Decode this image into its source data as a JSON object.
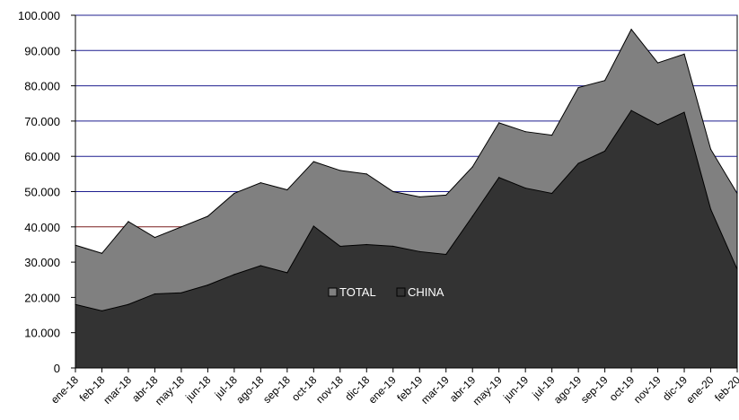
{
  "chart_data": {
    "type": "area",
    "categories": [
      "ene-18",
      "feb-18",
      "mar-18",
      "abr-18",
      "may-18",
      "jun-18",
      "jul-18",
      "ago-18",
      "sep-18",
      "oct-18",
      "nov-18",
      "dic-18",
      "ene-19",
      "feb-19",
      "mar-19",
      "abr-19",
      "may-19",
      "jun-19",
      "jul-19",
      "ago-19",
      "sep-19",
      "oct-19",
      "nov-19",
      "dic-19",
      "ene-20",
      "feb-20"
    ],
    "series": [
      {
        "name": "TOTAL",
        "color": "#808080",
        "values": [
          34800,
          32500,
          41500,
          37000,
          40000,
          43000,
          49500,
          52500,
          50500,
          58500,
          56000,
          55000,
          50000,
          48500,
          49000,
          57000,
          69500,
          67000,
          66000,
          79500,
          81500,
          96000,
          86500,
          89000,
          62000,
          49500
        ]
      },
      {
        "name": "CHINA",
        "color": "#333333",
        "values": [
          18000,
          16200,
          18000,
          21000,
          21300,
          23500,
          26500,
          29000,
          27000,
          40200,
          34500,
          35000,
          34500,
          33000,
          32200,
          43000,
          54000,
          51000,
          49500,
          58000,
          61500,
          73000,
          69000,
          72500,
          45000,
          28000
        ]
      }
    ],
    "y_ticks": [
      "0",
      "10.000",
      "20.000",
      "30.000",
      "40.000",
      "50.000",
      "60.000",
      "70.000",
      "80.000",
      "90.000",
      "100.000"
    ],
    "ylim": [
      0,
      100000
    ],
    "grid": true,
    "legend": "center",
    "colors": {
      "grid_upper": "#1f1f8f",
      "grid_lower": "#7a1f1f"
    }
  }
}
